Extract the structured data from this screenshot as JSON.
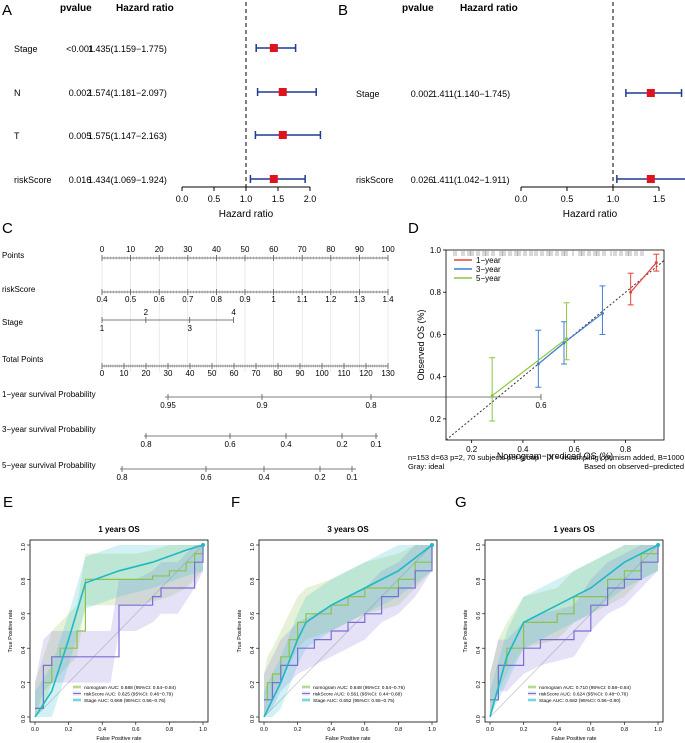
{
  "chart_data": [
    {
      "panel": "A",
      "type": "forest",
      "header_pvalue": "pvalue",
      "header_hr": "Hazard ratio",
      "xlabel": "Hazard ratio",
      "xlim": [
        0,
        2
      ],
      "ticks": [
        "0.0",
        "0.5",
        "1.0",
        "1.5",
        "2.0"
      ],
      "ref_line": 1,
      "rows": [
        {
          "label": "Stage",
          "p": "<0.001",
          "hr_text": "1.435(1.159−1.775)",
          "hr": 1.435,
          "lo": 1.159,
          "hi": 1.775
        },
        {
          "label": "N",
          "p": "0.002",
          "hr_text": "1.574(1.181−2.097)",
          "hr": 1.574,
          "lo": 1.181,
          "hi": 2.097
        },
        {
          "label": "T",
          "p": "0.005",
          "hr_text": "1.575(1.147−2.163)",
          "hr": 1.575,
          "lo": 1.147,
          "hi": 2.163
        },
        {
          "label": "riskScore",
          "p": "0.016",
          "hr_text": "1.434(1.069−1.924)",
          "hr": 1.434,
          "lo": 1.069,
          "hi": 1.924
        }
      ]
    },
    {
      "panel": "B",
      "type": "forest",
      "header_pvalue": "pvalue",
      "header_hr": "Hazard ratio",
      "xlabel": "Hazard ratio",
      "xlim": [
        0,
        1.5
      ],
      "ticks": [
        "0.0",
        "0.5",
        "1.0",
        "1.5"
      ],
      "ref_line": 1,
      "rows": [
        {
          "label": "Stage",
          "p": "0.002",
          "hr_text": "1.411(1.140−1.745)",
          "hr": 1.411,
          "lo": 1.14,
          "hi": 1.745
        },
        {
          "label": "riskScore",
          "p": "0.026",
          "hr_text": "1.411(1.042−1.911)",
          "hr": 1.411,
          "lo": 1.042,
          "hi": 1.911
        }
      ]
    },
    {
      "panel": "C",
      "type": "nomogram",
      "rows": [
        {
          "label": "Points",
          "ticks": [
            "0",
            "10",
            "20",
            "30",
            "40",
            "50",
            "60",
            "70",
            "80",
            "90",
            "100"
          ],
          "vmin": 0,
          "vmax": 100,
          "minor": 10
        },
        {
          "label": "riskScore",
          "ticks": [
            "0.4",
            "0.5",
            "0.6",
            "0.7",
            "0.8",
            "0.9",
            "1",
            "1.1",
            "1.2",
            "1.3",
            "1.4"
          ],
          "vmin": 0.4,
          "vmax": 1.4,
          "minor": 10
        },
        {
          "label": "Stage",
          "stage_top": [
            "2",
            "4"
          ],
          "stage_bottom": [
            "1",
            "3"
          ]
        },
        {
          "label": "Total Points",
          "ticks": [
            "0",
            "10",
            "20",
            "30",
            "40",
            "50",
            "60",
            "70",
            "80",
            "90",
            "100",
            "110",
            "120",
            "130"
          ],
          "vmin": 0,
          "vmax": 130,
          "minor": 10
        },
        {
          "label": "1−year survival Probability",
          "ticks": [
            "0.95",
            "0.9",
            "0.8",
            "0.6"
          ]
        },
        {
          "label": "3−year survival Probability",
          "ticks": [
            "0.8",
            "0.6",
            "0.4",
            "0.2",
            "0.1"
          ]
        },
        {
          "label": "5−year survival Probability",
          "ticks": [
            "0.8",
            "0.6",
            "0.4",
            "0.2",
            "0.1"
          ]
        }
      ]
    },
    {
      "panel": "D",
      "type": "calibration",
      "xlabel": "Nomogram−prediced OS (%)",
      "ylabel": "Observed OS (%)",
      "xlim": [
        0.1,
        0.95
      ],
      "ylim": [
        0.1,
        1.0
      ],
      "xticks": [
        "0.2",
        "0.4",
        "0.6",
        "0.8",
        "1.0"
      ],
      "yticks": [
        "0.2",
        "0.4",
        "0.6",
        "0.8",
        "1.0"
      ],
      "series": [
        {
          "name": "1−year",
          "color": "#e8423b",
          "x": [
            0.82,
            0.92
          ],
          "y": [
            0.8,
            0.94
          ],
          "lo": [
            0.74,
            0.9
          ],
          "hi": [
            0.89,
            0.98
          ]
        },
        {
          "name": "3−year",
          "color": "#3f7fd1",
          "x": [
            0.46,
            0.56,
            0.71
          ],
          "y": [
            0.46,
            0.56,
            0.7
          ],
          "lo": [
            0.35,
            0.46,
            0.6
          ],
          "hi": [
            0.62,
            0.66,
            0.83
          ]
        },
        {
          "name": "5−year",
          "color": "#8cc63f",
          "x": [
            0.28,
            0.57
          ],
          "y": [
            0.31,
            0.58
          ],
          "lo": [
            0.19,
            0.48
          ],
          "hi": [
            0.49,
            0.75
          ]
        }
      ],
      "note_left_1": "n=153 d=63 p=2, 70 subjects per group",
      "note_left_2": "Gray: ideal",
      "note_right_1": "X − resampling optimism added, B=1000",
      "note_right_2": "Based on observed−predicted"
    },
    {
      "panel": "E",
      "type": "roc",
      "title": "1 years OS",
      "xlabel": "False Positive rate",
      "ylabel": "True Positive rate",
      "ticks": [
        "0.0",
        "0.2",
        "0.4",
        "0.6",
        "0.8",
        "1.0"
      ],
      "legend": [
        "nomogram AUC: 0.688 (95%CI: 0.54−0.84)",
        "riskScore AUC: 0.625 (95%CI: 0.46−0.79)",
        "Stage AUC: 0.669 (95%CI: 0.56−0.76)"
      ],
      "series": [
        {
          "name": "nomogram",
          "x": [
            0,
            0.05,
            0.1,
            0.15,
            0.25,
            0.3,
            0.4,
            0.5,
            0.6,
            0.7,
            0.8,
            0.9,
            0.95,
            1
          ],
          "y": [
            0.05,
            0.2,
            0.35,
            0.4,
            0.5,
            0.8,
            0.8,
            0.8,
            0.8,
            0.82,
            0.85,
            0.9,
            0.95,
            1
          ]
        },
        {
          "name": "riskScore",
          "x": [
            0,
            0.05,
            0.1,
            0.15,
            0.3,
            0.45,
            0.5,
            0.6,
            0.7,
            0.75,
            0.85,
            0.95,
            1
          ],
          "y": [
            0.05,
            0.3,
            0.35,
            0.35,
            0.35,
            0.35,
            0.65,
            0.65,
            0.7,
            0.75,
            0.75,
            0.9,
            1
          ]
        },
        {
          "name": "Stage",
          "x": [
            0,
            0.1,
            0.2,
            0.3,
            0.5,
            0.7,
            0.9,
            1
          ],
          "y": [
            0,
            0.15,
            0.45,
            0.78,
            0.85,
            0.9,
            0.97,
            1
          ]
        }
      ]
    },
    {
      "panel": "F",
      "type": "roc",
      "title": "3 years OS",
      "xlabel": "False Positive rate",
      "ylabel": "True Positive rate",
      "ticks": [
        "0.0",
        "0.2",
        "0.4",
        "0.6",
        "0.8",
        "1.0"
      ],
      "legend": [
        "nomogram AUC: 0.648 (95%CI: 0.54−0.76)",
        "riskScore AUC: 0.561 (95%CI: 0.44−0.68)",
        "Stage AUC: 0.652 (95%CI: 0.55−0.75)"
      ],
      "series": [
        {
          "name": "nomogram",
          "x": [
            0,
            0.02,
            0.05,
            0.1,
            0.15,
            0.2,
            0.25,
            0.4,
            0.5,
            0.6,
            0.8,
            0.9,
            1
          ],
          "y": [
            0.1,
            0.2,
            0.25,
            0.35,
            0.45,
            0.55,
            0.6,
            0.65,
            0.7,
            0.75,
            0.8,
            0.9,
            1
          ]
        },
        {
          "name": "riskScore",
          "x": [
            0,
            0.05,
            0.1,
            0.2,
            0.3,
            0.4,
            0.5,
            0.6,
            0.7,
            0.8,
            0.9,
            1
          ],
          "y": [
            0.1,
            0.2,
            0.3,
            0.4,
            0.45,
            0.5,
            0.55,
            0.6,
            0.7,
            0.75,
            0.85,
            1
          ]
        },
        {
          "name": "Stage",
          "x": [
            0,
            0.05,
            0.1,
            0.2,
            0.25,
            0.4,
            0.6,
            0.8,
            1
          ],
          "y": [
            0,
            0.1,
            0.2,
            0.45,
            0.55,
            0.65,
            0.75,
            0.85,
            1
          ]
        }
      ]
    },
    {
      "panel": "G",
      "type": "roc",
      "title": "1 years OS",
      "xlabel": "False Positive rate",
      "ylabel": "True Positive rate",
      "ticks": [
        "0.0",
        "0.2",
        "0.4",
        "0.6",
        "0.8",
        "1.0"
      ],
      "legend": [
        "nomogram AUC: 0.710 (95%CI: 0.58−0.84)",
        "riskScore AUC: 0.624 (95%CI: 0.48−0.76)",
        "Stage AUC: 0.682 (95%CI: 0.56−0.80)"
      ],
      "series": [
        {
          "name": "nomogram",
          "x": [
            0,
            0.05,
            0.1,
            0.2,
            0.4,
            0.5,
            0.7,
            0.8,
            0.9,
            1
          ],
          "y": [
            0.1,
            0.3,
            0.4,
            0.55,
            0.6,
            0.7,
            0.8,
            0.85,
            0.95,
            1
          ]
        },
        {
          "name": "riskScore",
          "x": [
            0,
            0.05,
            0.1,
            0.2,
            0.3,
            0.5,
            0.6,
            0.7,
            0.8,
            0.9,
            1
          ],
          "y": [
            0.1,
            0.3,
            0.3,
            0.4,
            0.45,
            0.5,
            0.65,
            0.75,
            0.8,
            0.9,
            1
          ]
        },
        {
          "name": "Stage",
          "x": [
            0,
            0.1,
            0.2,
            0.4,
            0.6,
            0.8,
            1
          ],
          "y": [
            0,
            0.35,
            0.55,
            0.65,
            0.75,
            0.9,
            1
          ]
        }
      ]
    }
  ]
}
